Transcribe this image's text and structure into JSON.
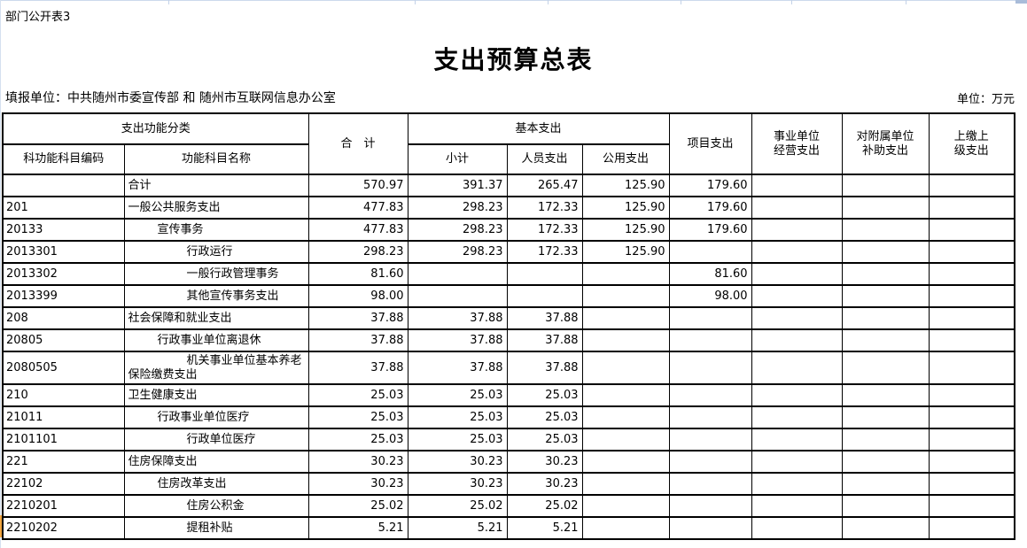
{
  "page": {
    "corner_label": "部门公开表3",
    "title": "支出预算总表",
    "filing_unit": "填报单位：中共随州市委宣传部 和 随州市互联网信息办公室",
    "unit_note": "单位：万元"
  },
  "colors": {
    "highlight_orange": "#F2A640",
    "gridline_blue": "#CCD9EC",
    "corner_blue": "#A9BCD9",
    "table_border": "#000000"
  },
  "table": {
    "header": {
      "function_group": "支出功能分类",
      "code": "科功能科目编码",
      "name": "功能科目名称",
      "total": "合　计",
      "basic_group": "基本支出",
      "subtotal": "小计",
      "personnel": "人员支出",
      "public": "公用支出",
      "project": "项目支出",
      "operating": "事业单位\n经营支出",
      "affiliate": "对附属单位\n补助支出",
      "upper": "上缴上\n级支出"
    },
    "rows": [
      {
        "code": "",
        "name": "合计",
        "indent": 0,
        "values": [
          "570.97",
          "391.37",
          "265.47",
          "125.90",
          "179.60",
          "",
          "",
          ""
        ]
      },
      {
        "code": "201",
        "name": "一般公共服务支出",
        "indent": 0,
        "values": [
          "477.83",
          "298.23",
          "172.33",
          "125.90",
          "179.60",
          "",
          "",
          ""
        ]
      },
      {
        "code": "20133",
        "name": "宣传事务",
        "indent": 1,
        "values": [
          "477.83",
          "298.23",
          "172.33",
          "125.90",
          "179.60",
          "",
          "",
          ""
        ]
      },
      {
        "code": "2013301",
        "name": "行政运行",
        "indent": 2,
        "values": [
          "298.23",
          "298.23",
          "172.33",
          "125.90",
          "",
          "",
          "",
          ""
        ]
      },
      {
        "code": "2013302",
        "name": "一般行政管理事务",
        "indent": 2,
        "values": [
          "81.60",
          "",
          "",
          "",
          "81.60",
          "",
          "",
          ""
        ]
      },
      {
        "code": "2013399",
        "name": "其他宣传事务支出",
        "indent": 2,
        "values": [
          "98.00",
          "",
          "",
          "",
          "98.00",
          "",
          "",
          ""
        ]
      },
      {
        "code": "208",
        "name": "社会保障和就业支出",
        "indent": 0,
        "values": [
          "37.88",
          "37.88",
          "37.88",
          "",
          "",
          "",
          "",
          ""
        ]
      },
      {
        "code": "20805",
        "name": "行政事业单位离退休",
        "indent": 1,
        "values": [
          "37.88",
          "37.88",
          "37.88",
          "",
          "",
          "",
          "",
          ""
        ]
      },
      {
        "code": "2080505",
        "name": "机关事业单位基本养老保险缴费支出",
        "indent": 2,
        "tall": true,
        "values": [
          "37.88",
          "37.88",
          "37.88",
          "",
          "",
          "",
          "",
          ""
        ]
      },
      {
        "code": "210",
        "name": "卫生健康支出",
        "indent": 0,
        "values": [
          "25.03",
          "25.03",
          "25.03",
          "",
          "",
          "",
          "",
          ""
        ]
      },
      {
        "code": "21011",
        "name": "行政事业单位医疗",
        "indent": 1,
        "values": [
          "25.03",
          "25.03",
          "25.03",
          "",
          "",
          "",
          "",
          ""
        ]
      },
      {
        "code": "2101101",
        "name": "行政单位医疗",
        "indent": 2,
        "values": [
          "25.03",
          "25.03",
          "25.03",
          "",
          "",
          "",
          "",
          ""
        ]
      },
      {
        "code": "221",
        "name": "住房保障支出",
        "indent": 0,
        "values": [
          "30.23",
          "30.23",
          "30.23",
          "",
          "",
          "",
          "",
          ""
        ]
      },
      {
        "code": "22102",
        "name": "住房改革支出",
        "indent": 1,
        "values": [
          "30.23",
          "30.23",
          "30.23",
          "",
          "",
          "",
          "",
          ""
        ]
      },
      {
        "code": "2210201",
        "name": "住房公积金",
        "indent": 2,
        "values": [
          "25.02",
          "25.02",
          "25.02",
          "",
          "",
          "",
          "",
          ""
        ]
      },
      {
        "code": "2210202",
        "name": "提租补贴",
        "indent": 2,
        "highlighted": true,
        "values": [
          "5.21",
          "5.21",
          "5.21",
          "",
          "",
          "",
          "",
          ""
        ]
      }
    ]
  }
}
